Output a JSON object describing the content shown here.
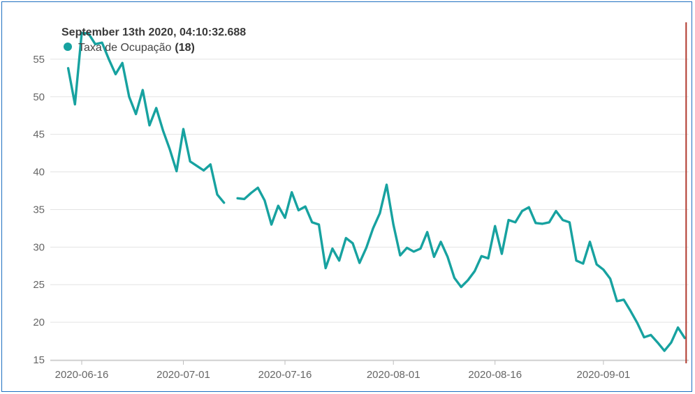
{
  "chart_data": {
    "type": "line",
    "ylim": [
      15,
      60
    ],
    "y_ticks": [
      15,
      20,
      25,
      30,
      35,
      40,
      45,
      50,
      55
    ],
    "x_ticks": [
      "2020-06-16",
      "2020-07-01",
      "2020-07-16",
      "2020-08-01",
      "2020-08-16",
      "2020-09-01"
    ],
    "grid": true,
    "series": [
      {
        "name": "Taxa de Ocupação",
        "color": "#17a2a0",
        "x": [
          "2020-06-14",
          "2020-06-15",
          "2020-06-16",
          "2020-06-17",
          "2020-06-18",
          "2020-06-19",
          "2020-06-20",
          "2020-06-21",
          "2020-06-22",
          "2020-06-23",
          "2020-06-24",
          "2020-06-25",
          "2020-06-26",
          "2020-06-27",
          "2020-06-28",
          "2020-06-29",
          "2020-06-30",
          "2020-07-01",
          "2020-07-02",
          "2020-07-03",
          "2020-07-04",
          "2020-07-05",
          "2020-07-06",
          "2020-07-07",
          "2020-07-08",
          "2020-07-09",
          "2020-07-10",
          "2020-07-11",
          "2020-07-12",
          "2020-07-13",
          "2020-07-14",
          "2020-07-15",
          "2020-07-16",
          "2020-07-17",
          "2020-07-18",
          "2020-07-19",
          "2020-07-20",
          "2020-07-21",
          "2020-07-22",
          "2020-07-23",
          "2020-07-24",
          "2020-07-25",
          "2020-07-26",
          "2020-07-27",
          "2020-07-28",
          "2020-07-29",
          "2020-07-30",
          "2020-07-31",
          "2020-08-01",
          "2020-08-02",
          "2020-08-03",
          "2020-08-04",
          "2020-08-05",
          "2020-08-06",
          "2020-08-07",
          "2020-08-08",
          "2020-08-09",
          "2020-08-10",
          "2020-08-11",
          "2020-08-12",
          "2020-08-13",
          "2020-08-14",
          "2020-08-15",
          "2020-08-16",
          "2020-08-17",
          "2020-08-18",
          "2020-08-19",
          "2020-08-20",
          "2020-08-21",
          "2020-08-22",
          "2020-08-23",
          "2020-08-24",
          "2020-08-25",
          "2020-08-26",
          "2020-08-27",
          "2020-08-28",
          "2020-08-29",
          "2020-08-30",
          "2020-08-31",
          "2020-09-01",
          "2020-09-02",
          "2020-09-03",
          "2020-09-04",
          "2020-09-05",
          "2020-09-06",
          "2020-09-07",
          "2020-09-08",
          "2020-09-09",
          "2020-09-10",
          "2020-09-11",
          "2020-09-12",
          "2020-09-13"
        ],
        "values": [
          53.8,
          49.0,
          58.5,
          58.4,
          57.0,
          57.2,
          55.0,
          53.0,
          54.5,
          50.0,
          47.7,
          50.9,
          46.2,
          48.5,
          45.5,
          43.0,
          40.1,
          45.7,
          41.4,
          40.8,
          40.2,
          41.0,
          37.0,
          35.9,
          null,
          36.5,
          36.4,
          37.2,
          37.9,
          36.2,
          33.0,
          35.5,
          33.9,
          37.3,
          34.9,
          35.4,
          33.3,
          33.0,
          27.2,
          29.8,
          28.2,
          31.2,
          30.5,
          27.9,
          29.9,
          32.5,
          34.5,
          38.3,
          33.0,
          28.9,
          29.9,
          29.4,
          29.8,
          32.0,
          28.7,
          30.7,
          28.7,
          25.9,
          24.7,
          25.6,
          26.8,
          28.8,
          28.5,
          32.8,
          29.1,
          33.6,
          33.3,
          34.8,
          35.3,
          33.2,
          33.1,
          33.3,
          34.8,
          33.6,
          33.3,
          28.2,
          27.8,
          30.7,
          27.7,
          27.0,
          25.8,
          22.8,
          23.0,
          21.5,
          19.9,
          18.0,
          18.3,
          17.3,
          16.2,
          17.3,
          19.3,
          17.9
        ]
      }
    ],
    "tooltip": {
      "title": "September 13th 2020, 04:10:32.688",
      "series_name": "Taxa de Ocupação",
      "count": "(18)"
    },
    "cursor_date": "2020-09-13",
    "colors": {
      "cursor": "#b03a2e",
      "grid": "#e3e3e3",
      "axis": "#bdbdbd",
      "marker": "#17a2a0"
    }
  }
}
